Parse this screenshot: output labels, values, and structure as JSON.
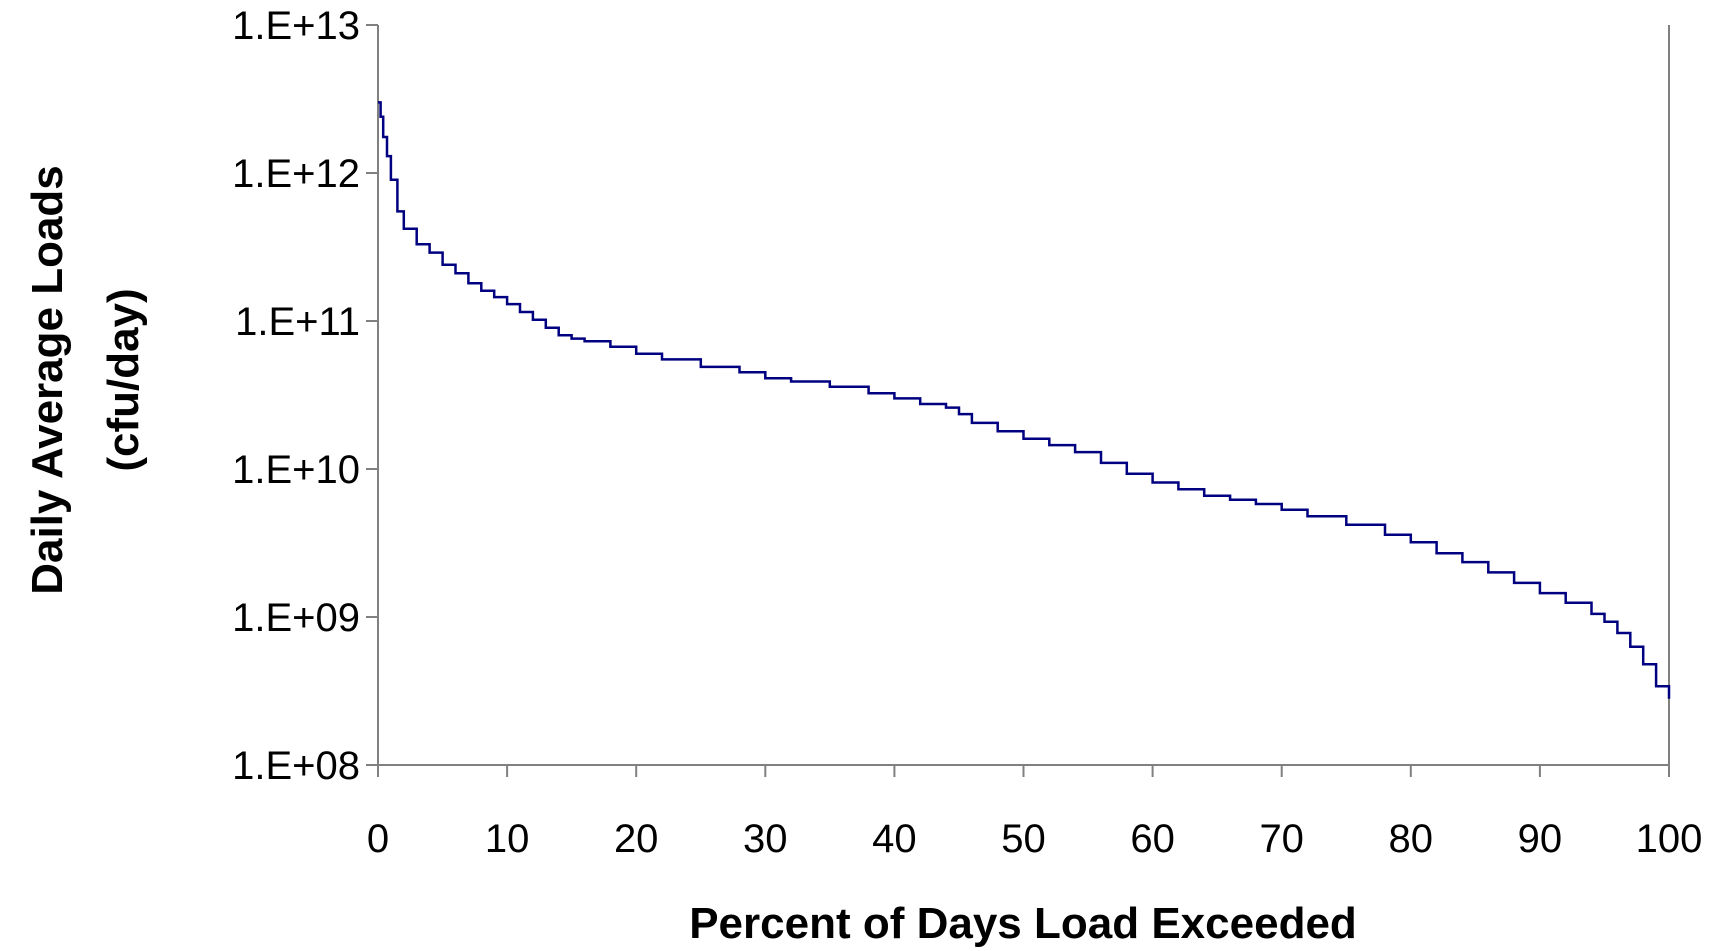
{
  "chart_data": {
    "type": "line",
    "title": "",
    "xlabel": "Percent of Days Load Exceeded",
    "ylabel_line1": "Daily Average Loads",
    "ylabel_line2": "(cfu/day)",
    "xlim": [
      0,
      100
    ],
    "ylim": [
      100000000.0,
      10000000000000.0
    ],
    "yscale": "log",
    "grid": false,
    "legend": "none",
    "x_ticks": [
      0,
      10,
      20,
      30,
      40,
      50,
      60,
      70,
      80,
      90,
      100
    ],
    "x_tick_labels": [
      "0",
      "10",
      "20",
      "30",
      "40",
      "50",
      "60",
      "70",
      "80",
      "90",
      "100"
    ],
    "y_ticks": [
      10000000000000.0,
      1000000000000.0,
      100000000000.0,
      10000000000.0,
      1000000000.0,
      100000000.0
    ],
    "y_tick_labels": [
      "1.E+13",
      "1.E+12",
      "1.E+11",
      "1.E+10",
      "1.E+09",
      "1.E+08"
    ],
    "series": [
      {
        "color": "#000080",
        "x": [
          0,
          0.2,
          0.4,
          0.7,
          1,
          1.5,
          2,
          3,
          4,
          5,
          6,
          7,
          8,
          9,
          10,
          11,
          12,
          13,
          14,
          15,
          16,
          18,
          20,
          22,
          25,
          28,
          30,
          32,
          35,
          38,
          40,
          42,
          44,
          45,
          46,
          48,
          50,
          52,
          54,
          56,
          58,
          60,
          62,
          64,
          66,
          68,
          70,
          72,
          75,
          78,
          80,
          82,
          84,
          86,
          88,
          90,
          92,
          94,
          95,
          96,
          97,
          98,
          99,
          100
        ],
        "y": [
          3000000000000.0,
          2400000000000.0,
          1750000000000.0,
          1300000000000.0,
          900000000000.0,
          550000000000.0,
          420000000000.0,
          330000000000.0,
          290000000000.0,
          240000000000.0,
          210000000000.0,
          180000000000.0,
          160000000000.0,
          145000000000.0,
          130000000000.0,
          115000000000.0,
          102000000000.0,
          90000000000.0,
          80000000000.0,
          76000000000.0,
          73000000000.0,
          67000000000.0,
          60000000000.0,
          55000000000.0,
          49000000000.0,
          45000000000.0,
          41000000000.0,
          39000000000.0,
          36000000000.0,
          32500000000.0,
          30000000000.0,
          27500000000.0,
          26000000000.0,
          23500000000.0,
          20500000000.0,
          18000000000.0,
          16000000000.0,
          14500000000.0,
          13000000000.0,
          11000000000.0,
          9300000000.0,
          8100000000.0,
          7300000000.0,
          6600000000.0,
          6200000000.0,
          5800000000.0,
          5300000000.0,
          4800000000.0,
          4200000000.0,
          3600000000.0,
          3200000000.0,
          2700000000.0,
          2350000000.0,
          2000000000.0,
          1700000000.0,
          1450000000.0,
          1250000000.0,
          1050000000.0,
          930000000.0,
          780000000.0,
          630000000.0,
          480000000.0,
          340000000.0,
          280000000.0
        ]
      }
    ]
  }
}
